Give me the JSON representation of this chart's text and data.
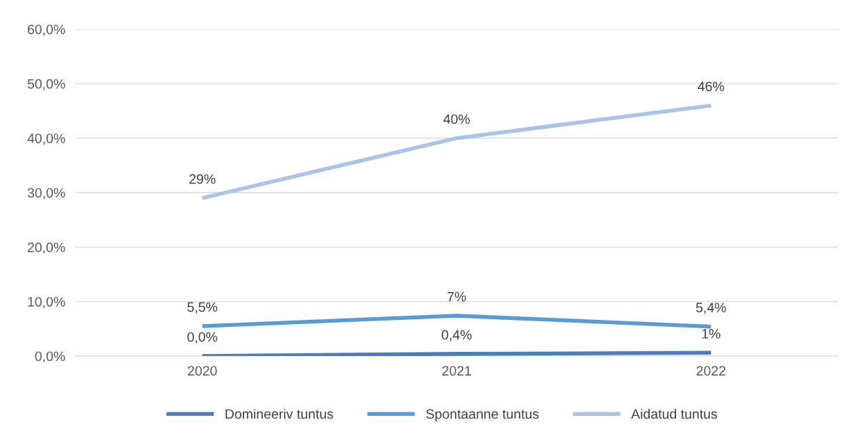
{
  "chart_data": {
    "type": "line",
    "categories": [
      "2020",
      "2021",
      "2022"
    ],
    "series": [
      {
        "name": "Domineeriv tuntus",
        "color": "#4a7ebb",
        "values": [
          0.0,
          0.4,
          0.6
        ],
        "value_labels": [
          "0,0%",
          "0,4%",
          "1%"
        ]
      },
      {
        "name": "Spontaanne tuntus",
        "color": "#5b9bd5",
        "values": [
          5.5,
          7.4,
          5.4
        ],
        "value_labels": [
          "5,5%",
          "7%",
          "5,4%"
        ]
      },
      {
        "name": "Aidatud tuntus",
        "color": "#a9c4e6",
        "values": [
          29,
          40,
          46
        ],
        "value_labels": [
          "29%",
          "40%",
          "46%"
        ]
      }
    ],
    "ylim": [
      0,
      60
    ],
    "yticks": [
      {
        "value": 0,
        "label": "0,0%"
      },
      {
        "value": 10,
        "label": "10,0%"
      },
      {
        "value": 20,
        "label": "20,0%"
      },
      {
        "value": 30,
        "label": "30,0%"
      },
      {
        "value": 40,
        "label": "40,0%"
      },
      {
        "value": 50,
        "label": "50,0%"
      },
      {
        "value": 60,
        "label": "60,0%"
      }
    ],
    "grid": "y",
    "legend": "bottom",
    "marker": "none",
    "line_style": "solid"
  }
}
